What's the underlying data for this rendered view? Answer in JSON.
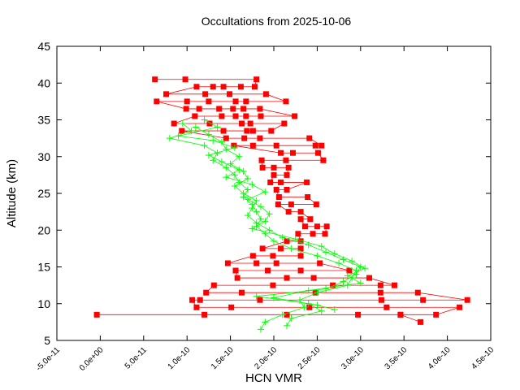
{
  "chart_data": {
    "type": "scatter",
    "title": "Occultations from 2025-10-06",
    "xlabel": "HCN VMR",
    "ylabel": "Altitude (km)",
    "xlim": [
      -5e-11,
      4.5e-10
    ],
    "ylim": [
      5,
      45
    ],
    "x_unit_scale": 1e-10,
    "x_ticks": [
      -0.5,
      0,
      0.5,
      1.0,
      1.5,
      2.0,
      2.5,
      3.0,
      3.5,
      4.0,
      4.5
    ],
    "x_tick_labels": [
      "-5.0e-11",
      "0.0e+00",
      "5.0e-11",
      "1.0e-10",
      "1.5e-10",
      "2.0e-10",
      "2.5e-10",
      "3.0e-10",
      "3.5e-10",
      "4.0e-10",
      "4.5e-10"
    ],
    "y_ticks": [
      5,
      10,
      15,
      20,
      25,
      30,
      35,
      40,
      45
    ],
    "y_tick_labels": [
      "5",
      "10",
      "15",
      "20",
      "25",
      "30",
      "35",
      "40",
      "45"
    ],
    "grid": false,
    "series": [
      {
        "name": "red-occultations",
        "color": "#ff0000",
        "marker": "square",
        "profiles": [
          [
            [
              0.63,
              40.5
            ],
            [
              0.98,
              40.5
            ],
            [
              1.8,
              40.5
            ],
            [
              1.78,
              39.5
            ],
            [
              1.62,
              39.5
            ],
            [
              1.42,
              39.5
            ],
            [
              1.3,
              39.5
            ],
            [
              1.11,
              39.5
            ],
            [
              0.76,
              38.5
            ],
            [
              1.21,
              38.5
            ],
            [
              1.49,
              38.5
            ],
            [
              1.91,
              38.5
            ],
            [
              2.14,
              37.5
            ],
            [
              1.68,
              37.5
            ],
            [
              1.56,
              37.5
            ],
            [
              1.25,
              37.5
            ],
            [
              1.0,
              37.5
            ],
            [
              0.65,
              37.5
            ],
            [
              0.99,
              36.5
            ],
            [
              1.14,
              36.5
            ],
            [
              1.37,
              36.5
            ],
            [
              1.53,
              36.5
            ],
            [
              1.65,
              36.5
            ],
            [
              1.84,
              36.5
            ],
            [
              2.24,
              35.5
            ],
            [
              1.85,
              35.5
            ],
            [
              1.68,
              35.5
            ],
            [
              1.56,
              35.5
            ],
            [
              1.4,
              35.5
            ],
            [
              1.09,
              35.5
            ],
            [
              0.85,
              34.5
            ],
            [
              1.26,
              34.5
            ],
            [
              1.63,
              34.5
            ],
            [
              1.73,
              34.5
            ],
            [
              2.12,
              34.5
            ],
            [
              1.97,
              33.5
            ],
            [
              1.76,
              33.5
            ],
            [
              1.69,
              33.5
            ],
            [
              1.42,
              33.5
            ],
            [
              0.94,
              33.5
            ],
            [
              1.45,
              32.5
            ],
            [
              1.66,
              32.5
            ],
            [
              1.84,
              32.5
            ],
            [
              2.41,
              32.5
            ],
            [
              2.55,
              31.5
            ],
            [
              2.48,
              31.5
            ],
            [
              2.03,
              31.5
            ],
            [
              1.76,
              31.5
            ],
            [
              1.54,
              31.5
            ],
            [
              2.08,
              30.5
            ],
            [
              2.22,
              30.5
            ],
            [
              2.51,
              30.5
            ],
            [
              2.57,
              29.5
            ],
            [
              2.14,
              29.5
            ],
            [
              1.86,
              29.5
            ],
            [
              1.87,
              28.5
            ],
            [
              2.0,
              28.5
            ],
            [
              2.17,
              28.5
            ],
            [
              2.15,
              27.5
            ],
            [
              2.0,
              27.5
            ],
            [
              1.96,
              26.5
            ],
            [
              2.08,
              26.5
            ],
            [
              2.38,
              26.5
            ],
            [
              2.15,
              25.5
            ],
            [
              2.03,
              25.5
            ],
            [
              2.06,
              24.5
            ],
            [
              2.39,
              24.5
            ],
            [
              2.49,
              23.5
            ],
            [
              2.2,
              23.5
            ],
            [
              2.05,
              23.5
            ],
            [
              2.17,
              22.5
            ],
            [
              2.31,
              22.5
            ],
            [
              2.42,
              21.5
            ],
            [
              2.31,
              21.5
            ],
            [
              2.36,
              20.5
            ],
            [
              2.5,
              20.5
            ],
            [
              2.61,
              20.5
            ],
            [
              2.59,
              19.5
            ],
            [
              2.45,
              19.5
            ],
            [
              2.28,
              19.5
            ],
            [
              2.31,
              18.5
            ],
            [
              2.15,
              18.5
            ],
            [
              1.87,
              17.5
            ],
            [
              2.08,
              17.5
            ],
            [
              2.31,
              17.5
            ],
            [
              2.31,
              16.5
            ],
            [
              1.99,
              16.5
            ],
            [
              1.76,
              16.5
            ],
            [
              1.47,
              15.5
            ],
            [
              1.8,
              15.5
            ],
            [
              2.03,
              15.5
            ],
            [
              2.53,
              15.5
            ],
            [
              2.87,
              14.5
            ],
            [
              2.31,
              14.5
            ],
            [
              1.93,
              14.5
            ],
            [
              1.56,
              14.5
            ],
            [
              1.58,
              13.5
            ],
            [
              2.15,
              13.5
            ],
            [
              2.46,
              13.5
            ],
            [
              3.1,
              13.5
            ],
            [
              3.39,
              12.5
            ],
            [
              3.23,
              12.5
            ],
            [
              2.68,
              12.5
            ],
            [
              1.99,
              12.5
            ],
            [
              1.31,
              12.5
            ],
            [
              1.22,
              11.5
            ],
            [
              1.63,
              11.5
            ],
            [
              2.48,
              11.5
            ],
            [
              3.23,
              11.5
            ],
            [
              3.66,
              11.5
            ],
            [
              4.23,
              10.5
            ],
            [
              3.72,
              10.5
            ],
            [
              3.24,
              10.5
            ],
            [
              1.84,
              10.5
            ],
            [
              1.15,
              10.5
            ],
            [
              1.06,
              10.5
            ],
            [
              1.11,
              9.5
            ],
            [
              1.51,
              9.5
            ],
            [
              2.41,
              9.5
            ],
            [
              3.3,
              9.5
            ],
            [
              4.14,
              9.5
            ],
            [
              3.87,
              8.5
            ],
            [
              3.46,
              8.5
            ],
            [
              2.97,
              8.5
            ],
            [
              2.15,
              8.5
            ],
            [
              1.2,
              8.5
            ],
            [
              -0.04,
              8.5
            ]
          ],
          [
            [
              3.69,
              7.5
            ],
            [
              3.46,
              8.5
            ]
          ]
        ]
      },
      {
        "name": "green-occultations",
        "color": "#00ff00",
        "marker": "plus",
        "profiles": [
          [
            [
              0.95,
              34.5
            ],
            [
              1.05,
              33.5
            ],
            [
              0.8,
              32.5
            ],
            [
              1.2,
              31.5
            ],
            [
              1.35,
              30.5
            ],
            [
              1.3,
              29.5
            ],
            [
              1.45,
              28.5
            ],
            [
              1.55,
              27.5
            ],
            [
              1.6,
              26.5
            ],
            [
              1.7,
              25.5
            ],
            [
              1.65,
              24.5
            ],
            [
              1.75,
              23.5
            ],
            [
              1.8,
              22.5
            ],
            [
              1.85,
              21.5
            ],
            [
              1.8,
              20.5
            ],
            [
              1.9,
              19.5
            ],
            [
              2.0,
              18.5
            ],
            [
              2.2,
              17.5
            ],
            [
              2.5,
              16.5
            ],
            [
              2.75,
              15.5
            ],
            [
              2.95,
              14.5
            ],
            [
              2.9,
              13.5
            ],
            [
              2.85,
              12.5
            ],
            [
              2.5,
              11.5
            ],
            [
              2.3,
              10.5
            ],
            [
              2.35,
              9.5
            ],
            [
              2.1,
              8.5
            ],
            [
              1.9,
              7.5
            ],
            [
              1.85,
              6.5
            ]
          ],
          [
            [
              1.1,
              34.0
            ],
            [
              1.25,
              33.0
            ],
            [
              1.4,
              32.0
            ],
            [
              1.45,
              31.0
            ],
            [
              1.6,
              30.0
            ],
            [
              1.5,
              29.0
            ],
            [
              1.65,
              28.0
            ],
            [
              1.7,
              27.0
            ],
            [
              1.55,
              26.0
            ],
            [
              1.65,
              25.0
            ],
            [
              1.8,
              24.0
            ],
            [
              1.75,
              23.0
            ],
            [
              1.7,
              22.0
            ],
            [
              1.8,
              21.0
            ],
            [
              1.95,
              20.0
            ],
            [
              2.1,
              19.0
            ],
            [
              2.4,
              18.0
            ],
            [
              2.6,
              17.0
            ],
            [
              2.8,
              16.0
            ],
            [
              3.0,
              15.0
            ],
            [
              2.95,
              14.0
            ],
            [
              2.8,
              13.0
            ],
            [
              2.6,
              12.0
            ],
            [
              1.8,
              11.0
            ],
            [
              2.4,
              10.0
            ],
            [
              2.55,
              9.0
            ],
            [
              2.2,
              8.0
            ],
            [
              2.15,
              7.0
            ]
          ],
          [
            [
              1.2,
              35.0
            ],
            [
              1.35,
              34.0
            ],
            [
              0.9,
              32.8
            ],
            [
              1.3,
              32.2
            ],
            [
              1.55,
              31.2
            ],
            [
              1.25,
              30.2
            ],
            [
              1.4,
              29.3
            ],
            [
              1.6,
              28.2
            ],
            [
              1.45,
              27.2
            ],
            [
              1.75,
              26.2
            ],
            [
              1.9,
              25.2
            ],
            [
              1.7,
              24.2
            ],
            [
              1.85,
              23.2
            ],
            [
              1.95,
              22.2
            ],
            [
              1.9,
              21.2
            ],
            [
              1.75,
              20.2
            ],
            [
              2.25,
              18.8
            ],
            [
              2.55,
              17.8
            ],
            [
              2.7,
              16.8
            ],
            [
              2.9,
              15.8
            ],
            [
              3.05,
              14.8
            ],
            [
              2.85,
              13.8
            ],
            [
              3.0,
              12.8
            ],
            [
              2.4,
              11.8
            ],
            [
              2.0,
              10.8
            ],
            [
              2.5,
              9.8
            ],
            [
              2.7,
              9.2
            ]
          ]
        ]
      }
    ]
  }
}
